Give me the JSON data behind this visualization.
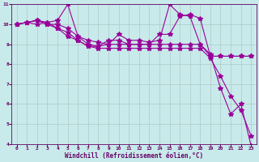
{
  "xlabel": "Windchill (Refroidissement éolien,°C)",
  "background_color": "#c8eaea",
  "line_color": "#990099",
  "grid_color": "#b0c8c8",
  "xlim": [
    -0.5,
    23.5
  ],
  "ylim": [
    4,
    11
  ],
  "xticks": [
    0,
    1,
    2,
    3,
    4,
    5,
    6,
    7,
    8,
    9,
    10,
    11,
    12,
    13,
    14,
    15,
    16,
    17,
    18,
    19,
    20,
    21,
    22,
    23
  ],
  "yticks": [
    4,
    5,
    6,
    7,
    8,
    9,
    10,
    11
  ],
  "series": [
    [
      10.0,
      10.1,
      10.0,
      10.1,
      10.2,
      11.0,
      9.4,
      9.2,
      9.1,
      9.0,
      9.5,
      9.2,
      9.2,
      9.1,
      9.2,
      11.0,
      10.5,
      10.4,
      9.0,
      8.5,
      6.8,
      5.5,
      6.0,
      3.9
    ],
    [
      10.0,
      10.1,
      10.2,
      10.0,
      10.0,
      9.8,
      9.4,
      9.0,
      8.9,
      9.2,
      9.2,
      9.0,
      9.0,
      9.0,
      9.5,
      9.5,
      10.4,
      10.5,
      10.3,
      8.4,
      8.4,
      8.4,
      8.4,
      8.4
    ],
    [
      10.0,
      10.1,
      10.2,
      10.1,
      9.8,
      9.6,
      9.2,
      8.9,
      8.9,
      9.0,
      9.0,
      9.0,
      9.0,
      9.0,
      9.0,
      9.0,
      9.0,
      9.0,
      9.0,
      8.4,
      8.4,
      8.4,
      8.4,
      8.4
    ],
    [
      10.0,
      10.1,
      10.2,
      10.0,
      9.8,
      9.4,
      9.2,
      8.9,
      8.8,
      8.8,
      8.8,
      8.8,
      8.8,
      8.8,
      8.8,
      8.8,
      8.8,
      8.8,
      8.8,
      8.3,
      7.4,
      6.4,
      5.7,
      4.4
    ]
  ],
  "marker": "*",
  "marker_size": 4,
  "line_width": 0.8,
  "font_color": "#660066",
  "tick_fontsize": 4.5,
  "label_fontsize": 5.5
}
